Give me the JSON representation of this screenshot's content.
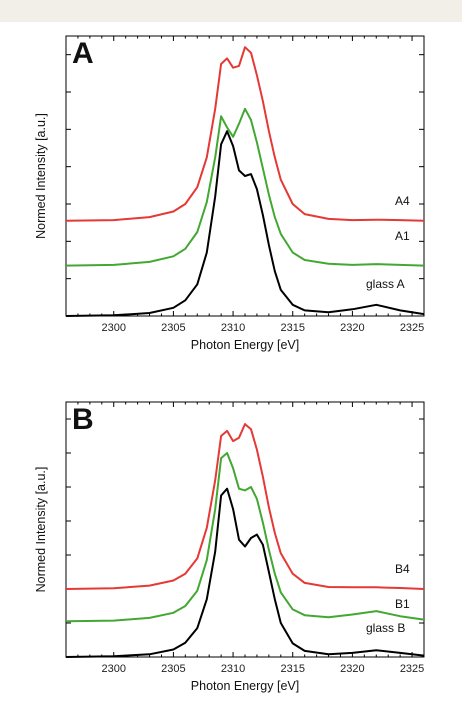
{
  "chart_data": [
    {
      "type": "line",
      "panel_label": "A",
      "xlabel": "Photon Energy [eV]",
      "ylabel": "Normed Intensity [a.u.]",
      "xlim": [
        2296,
        2326
      ],
      "xticks": [
        2300,
        2305,
        2310,
        2315,
        2320,
        2325
      ],
      "xtick_labels": [
        "2300",
        "2305",
        "2310",
        "2315",
        "2320",
        "2325"
      ],
      "ylim": [
        0,
        7.5
      ],
      "yticks": [
        0,
        1,
        2,
        3,
        4,
        5,
        6,
        7
      ],
      "grid": false,
      "series": [
        {
          "name": "A4",
          "color": "#e53935",
          "offset": 2.55,
          "x": [
            2296,
            2300,
            2303,
            2305,
            2306,
            2307,
            2307.8,
            2308.5,
            2309,
            2309.5,
            2310,
            2310.5,
            2311,
            2311.5,
            2312,
            2312.5,
            2313,
            2313.5,
            2314,
            2315,
            2316,
            2318,
            2320,
            2322,
            2324,
            2326
          ],
          "y": [
            0.0,
            0.02,
            0.1,
            0.25,
            0.45,
            0.9,
            1.7,
            3.0,
            4.2,
            4.35,
            4.1,
            4.15,
            4.65,
            4.5,
            3.9,
            3.2,
            2.4,
            1.7,
            1.1,
            0.45,
            0.18,
            0.05,
            0.02,
            0.03,
            0.02,
            0.0
          ]
        },
        {
          "name": "A1",
          "color": "#43a832",
          "offset": 1.35,
          "x": [
            2296,
            2300,
            2303,
            2305,
            2306,
            2307,
            2307.8,
            2308.5,
            2309,
            2309.5,
            2310,
            2310.5,
            2311,
            2311.5,
            2312,
            2312.5,
            2313,
            2313.5,
            2314,
            2315,
            2316,
            2318,
            2320,
            2322,
            2324,
            2326
          ],
          "y": [
            0.0,
            0.02,
            0.1,
            0.25,
            0.45,
            0.9,
            1.7,
            2.9,
            4.0,
            3.7,
            3.45,
            3.8,
            4.2,
            3.9,
            3.3,
            2.6,
            1.9,
            1.3,
            0.85,
            0.35,
            0.15,
            0.05,
            0.02,
            0.04,
            0.02,
            0.0
          ]
        },
        {
          "name": "glass A",
          "color": "#000000",
          "offset": 0.0,
          "x": [
            2296,
            2300,
            2303,
            2305,
            2306,
            2307,
            2307.8,
            2308.5,
            2309,
            2309.5,
            2310,
            2310.5,
            2311,
            2311.5,
            2312,
            2312.5,
            2313,
            2313.5,
            2314,
            2315,
            2316,
            2318,
            2320,
            2322,
            2324,
            2326
          ],
          "y": [
            0.0,
            0.02,
            0.08,
            0.22,
            0.42,
            0.85,
            1.7,
            3.2,
            4.6,
            4.95,
            4.55,
            3.9,
            3.75,
            3.8,
            3.4,
            2.7,
            1.9,
            1.2,
            0.7,
            0.3,
            0.15,
            0.1,
            0.18,
            0.3,
            0.15,
            0.05
          ]
        }
      ],
      "annotations": [
        "A4",
        "A1",
        "glass A"
      ]
    },
    {
      "type": "line",
      "panel_label": "B",
      "xlabel": "Photon Energy [eV]",
      "ylabel": "Normed Intensity [a.u.]",
      "xlim": [
        2296,
        2326
      ],
      "xticks": [
        2300,
        2305,
        2310,
        2315,
        2320,
        2325
      ],
      "xtick_labels": [
        "2300",
        "2305",
        "2310",
        "2315",
        "2320",
        "2325"
      ],
      "ylim": [
        0,
        7.5
      ],
      "yticks": [
        0,
        1,
        2,
        3,
        4,
        5,
        6,
        7
      ],
      "grid": false,
      "series": [
        {
          "name": "B4",
          "color": "#e53935",
          "offset": 2.0,
          "x": [
            2296,
            2300,
            2303,
            2305,
            2306,
            2307,
            2307.8,
            2308.5,
            2309,
            2309.5,
            2310,
            2310.5,
            2311,
            2311.5,
            2312,
            2312.5,
            2313,
            2313.5,
            2314,
            2315,
            2316,
            2318,
            2320,
            2322,
            2324,
            2326
          ],
          "y": [
            0.0,
            0.02,
            0.1,
            0.25,
            0.45,
            0.9,
            1.8,
            3.2,
            4.5,
            4.65,
            4.35,
            4.45,
            4.85,
            4.7,
            4.1,
            3.3,
            2.4,
            1.65,
            1.05,
            0.45,
            0.18,
            0.06,
            0.05,
            0.05,
            0.03,
            0.0
          ]
        },
        {
          "name": "B1",
          "color": "#43a832",
          "offset": 1.05,
          "x": [
            2296,
            2300,
            2303,
            2305,
            2306,
            2307,
            2307.8,
            2308.5,
            2309,
            2309.5,
            2310,
            2310.5,
            2311,
            2311.5,
            2312,
            2312.5,
            2313,
            2313.5,
            2314,
            2315,
            2316,
            2318,
            2320,
            2322,
            2324,
            2326
          ],
          "y": [
            0.0,
            0.02,
            0.1,
            0.25,
            0.45,
            0.9,
            1.8,
            3.3,
            4.8,
            4.95,
            4.5,
            3.9,
            3.85,
            3.95,
            3.6,
            2.9,
            2.1,
            1.4,
            0.85,
            0.35,
            0.18,
            0.12,
            0.2,
            0.3,
            0.15,
            0.05
          ]
        },
        {
          "name": "glass B",
          "color": "#000000",
          "offset": 0.0,
          "x": [
            2296,
            2300,
            2303,
            2305,
            2306,
            2307,
            2307.8,
            2308.5,
            2309,
            2309.5,
            2310,
            2310.5,
            2311,
            2311.5,
            2312,
            2312.5,
            2313,
            2313.5,
            2314,
            2315,
            2316,
            2318,
            2320,
            2322,
            2324,
            2326
          ],
          "y": [
            0.0,
            0.02,
            0.08,
            0.22,
            0.42,
            0.85,
            1.7,
            3.1,
            4.75,
            4.95,
            4.35,
            3.45,
            3.25,
            3.5,
            3.6,
            3.3,
            2.5,
            1.7,
            1.0,
            0.4,
            0.18,
            0.08,
            0.12,
            0.2,
            0.12,
            0.04
          ]
        }
      ],
      "annotations": [
        "B4",
        "B1",
        "glass B"
      ]
    }
  ]
}
